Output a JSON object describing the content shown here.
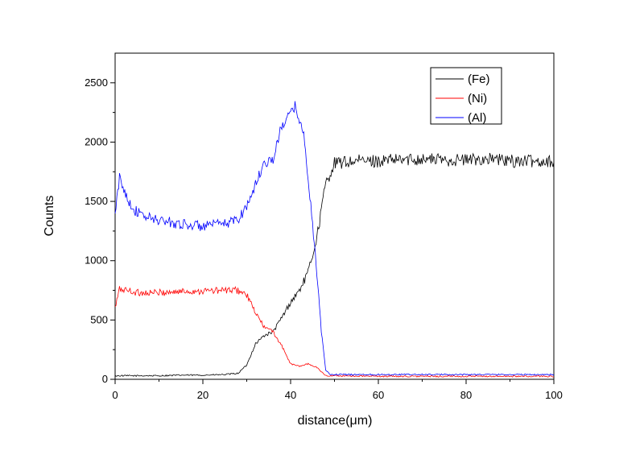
{
  "chart_data": {
    "type": "line",
    "xlabel": "distance(μm)",
    "ylabel": "Counts",
    "xlim": [
      0,
      100
    ],
    "ylim": [
      0,
      2750
    ],
    "xticks": [
      0,
      20,
      40,
      60,
      80,
      100
    ],
    "yticks": [
      0,
      500,
      1000,
      1500,
      2000,
      2500
    ],
    "grid": false,
    "legend_position": "top-right",
    "series": [
      {
        "name": "(Fe)",
        "color": "#000000",
        "points": [
          [
            0,
            30
          ],
          [
            5,
            30
          ],
          [
            10,
            30
          ],
          [
            15,
            35
          ],
          [
            20,
            35
          ],
          [
            25,
            40
          ],
          [
            28,
            50
          ],
          [
            30,
            120
          ],
          [
            32,
            300
          ],
          [
            34,
            370
          ],
          [
            36,
            400
          ],
          [
            38,
            520
          ],
          [
            40,
            650
          ],
          [
            42,
            750
          ],
          [
            44,
            900
          ],
          [
            46,
            1200
          ],
          [
            48,
            1650
          ],
          [
            50,
            1820
          ],
          [
            55,
            1840
          ],
          [
            60,
            1840
          ],
          [
            65,
            1850
          ],
          [
            70,
            1860
          ],
          [
            75,
            1850
          ],
          [
            80,
            1850
          ],
          [
            85,
            1860
          ],
          [
            90,
            1840
          ],
          [
            95,
            1840
          ],
          [
            100,
            1840
          ]
        ]
      },
      {
        "name": "(Ni)",
        "color": "#ff0000",
        "points": [
          [
            0,
            600
          ],
          [
            1,
            760
          ],
          [
            3,
            750
          ],
          [
            5,
            730
          ],
          [
            10,
            730
          ],
          [
            15,
            740
          ],
          [
            20,
            745
          ],
          [
            25,
            750
          ],
          [
            28,
            750
          ],
          [
            30,
            710
          ],
          [
            32,
            560
          ],
          [
            34,
            440
          ],
          [
            36,
            400
          ],
          [
            38,
            280
          ],
          [
            40,
            130
          ],
          [
            42,
            110
          ],
          [
            44,
            130
          ],
          [
            46,
            100
          ],
          [
            48,
            30
          ],
          [
            50,
            30
          ],
          [
            60,
            25
          ],
          [
            70,
            25
          ],
          [
            80,
            25
          ],
          [
            90,
            25
          ],
          [
            100,
            25
          ]
        ]
      },
      {
        "name": "(Al)",
        "color": "#0000ff",
        "points": [
          [
            0,
            1380
          ],
          [
            1,
            1700
          ],
          [
            2,
            1600
          ],
          [
            4,
            1440
          ],
          [
            6,
            1380
          ],
          [
            10,
            1340
          ],
          [
            15,
            1310
          ],
          [
            20,
            1290
          ],
          [
            25,
            1310
          ],
          [
            28,
            1350
          ],
          [
            30,
            1460
          ],
          [
            32,
            1640
          ],
          [
            34,
            1830
          ],
          [
            36,
            1850
          ],
          [
            38,
            2140
          ],
          [
            40,
            2240
          ],
          [
            41,
            2300
          ],
          [
            42,
            2200
          ],
          [
            43,
            2050
          ],
          [
            44,
            1700
          ],
          [
            45,
            1300
          ],
          [
            46,
            900
          ],
          [
            47,
            400
          ],
          [
            48,
            80
          ],
          [
            49,
            40
          ],
          [
            50,
            40
          ],
          [
            60,
            40
          ],
          [
            70,
            40
          ],
          [
            80,
            40
          ],
          [
            90,
            40
          ],
          [
            100,
            40
          ]
        ]
      }
    ]
  }
}
